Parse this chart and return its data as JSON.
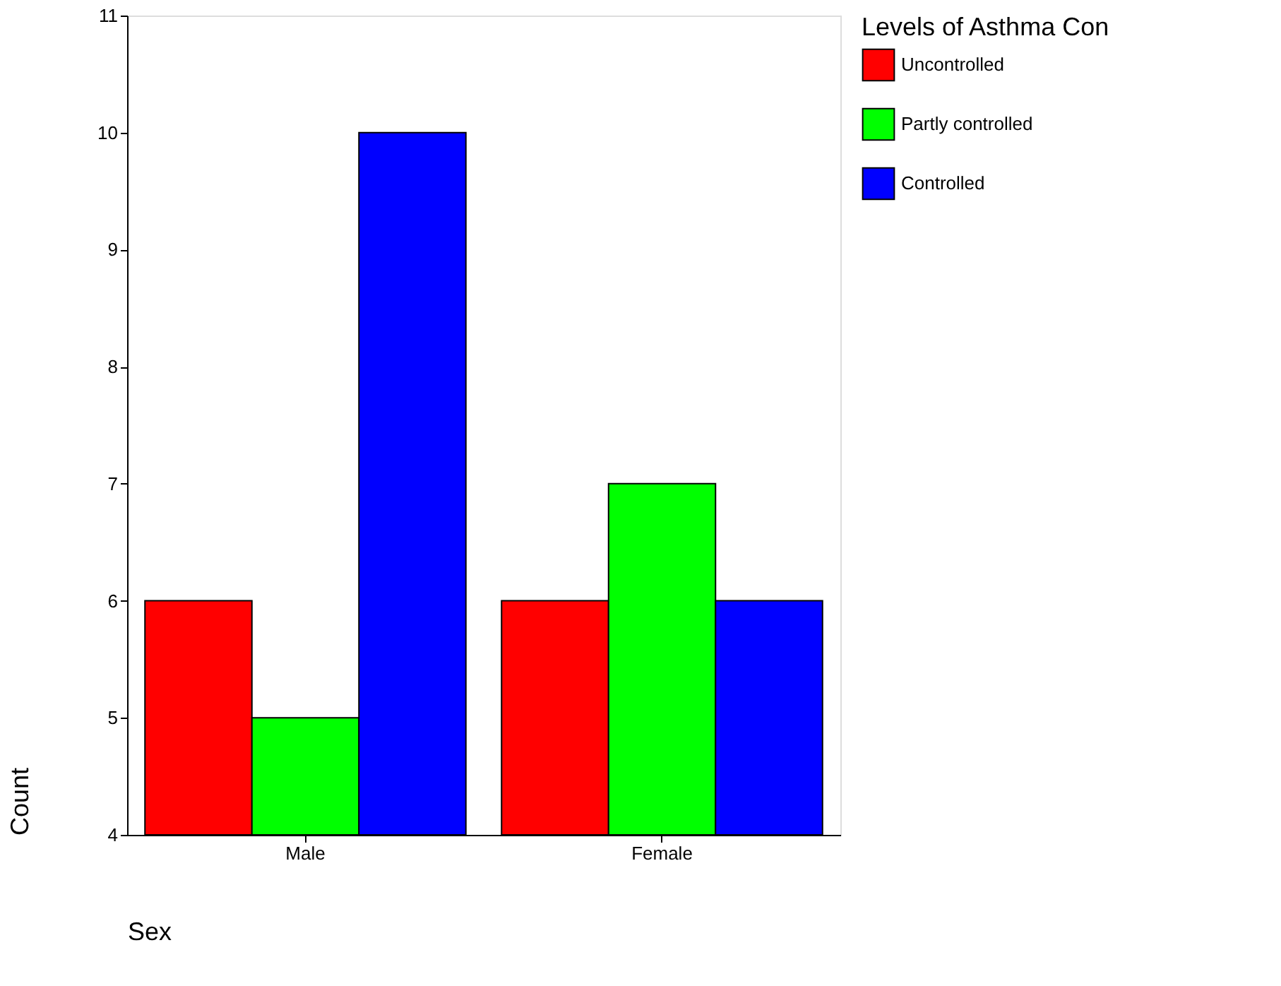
{
  "chart_data": {
    "type": "bar",
    "xlabel": "Sex",
    "ylabel": "Count",
    "legend_title": "Levels of Asthma Con",
    "categories": [
      "Male",
      "Female"
    ],
    "series": [
      {
        "name": "Uncontrolled",
        "color": "#ff0000",
        "values": [
          6,
          6
        ]
      },
      {
        "name": "Partly controlled",
        "color": "#00ff00",
        "values": [
          5,
          7
        ]
      },
      {
        "name": "Controlled",
        "color": "#0000ff",
        "values": [
          10,
          6
        ]
      }
    ],
    "ylim": [
      4,
      11
    ],
    "yticks": [
      4,
      5,
      6,
      7,
      8,
      9,
      10,
      11
    ],
    "grid": false,
    "legend": "right"
  }
}
